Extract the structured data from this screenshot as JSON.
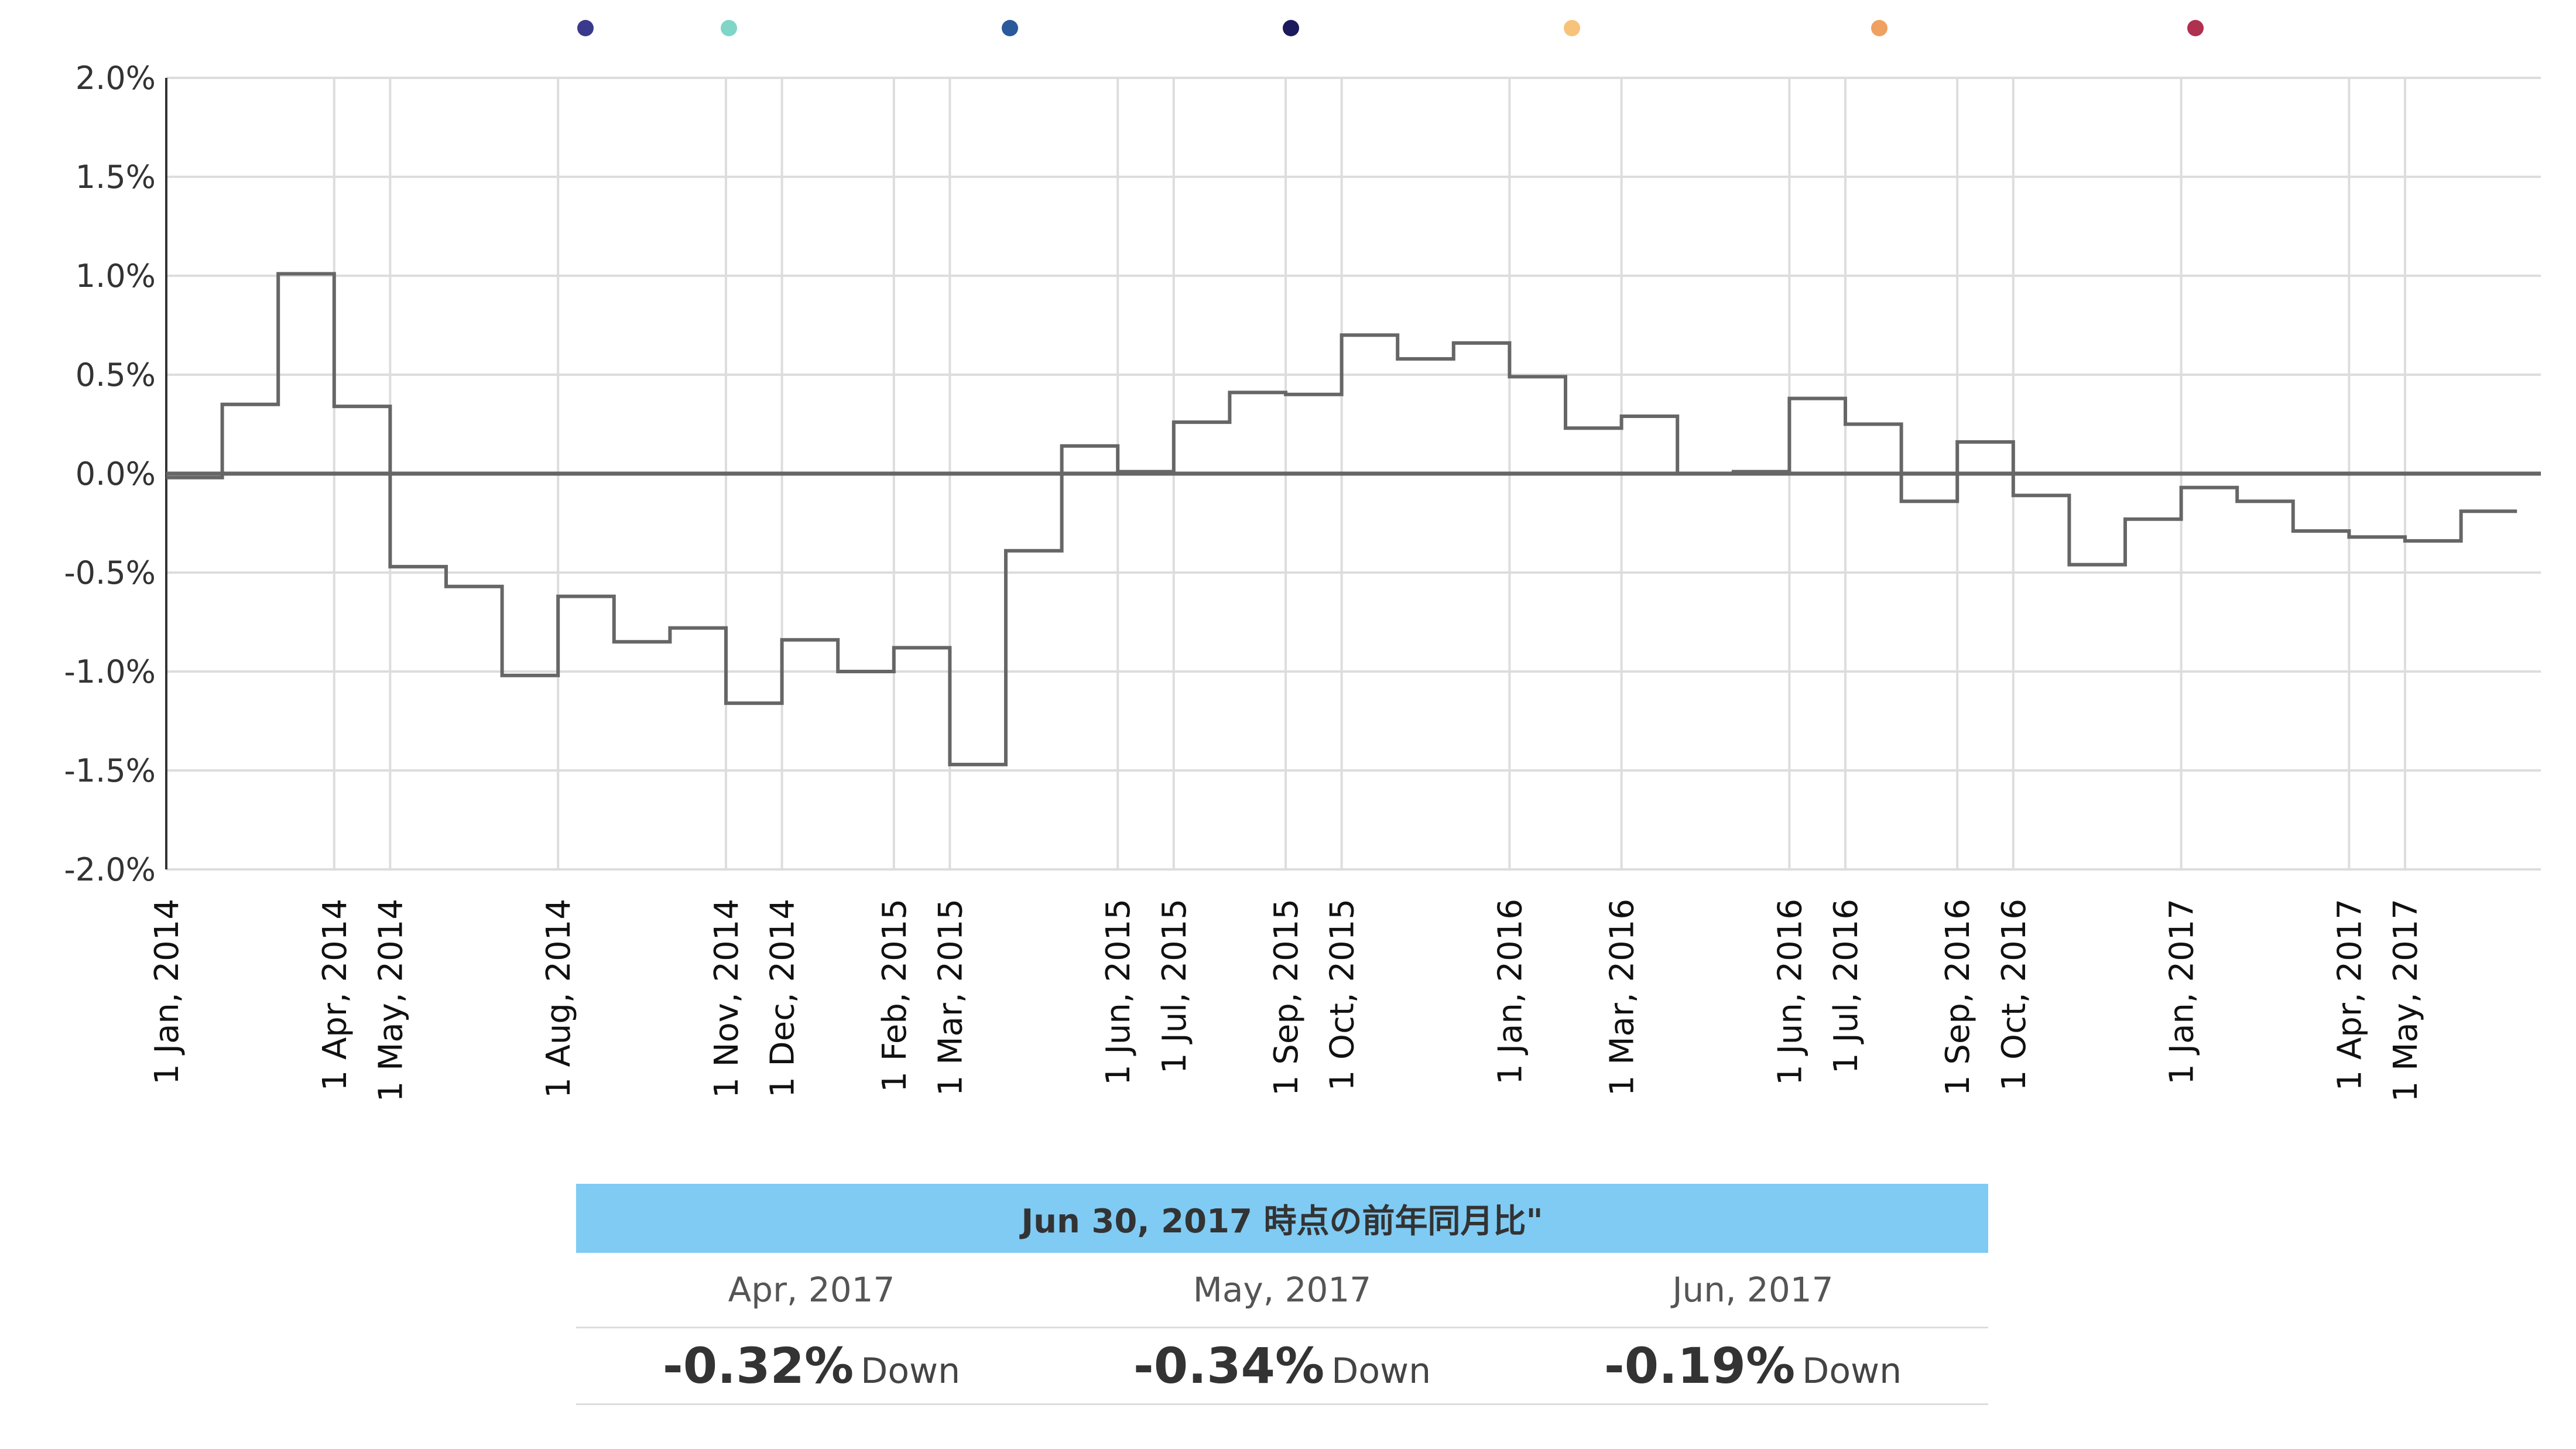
{
  "chart_data": {
    "type": "line",
    "step": true,
    "title": "",
    "xlabel": "",
    "ylabel": "",
    "ylim": [
      -2.0,
      2.0
    ],
    "xlim": [
      "2014-01",
      "2017-07"
    ],
    "yticks": [
      "2.0%",
      "1.5%",
      "1.0%",
      "0.5%",
      "0.0%",
      "-0.5%",
      "-1.0%",
      "-1.5%",
      "-2.0%"
    ],
    "ytick_values": [
      2.0,
      1.5,
      1.0,
      0.5,
      0.0,
      -0.5,
      -1.0,
      -1.5,
      -2.0
    ],
    "xticks": [
      {
        "label": "1 Jan, 2014",
        "month": 0
      },
      {
        "label": "1 Apr, 2014",
        "month": 3
      },
      {
        "label": "1 May, 2014",
        "month": 4
      },
      {
        "label": "1 Aug, 2014",
        "month": 7
      },
      {
        "label": "1 Nov, 2014",
        "month": 10
      },
      {
        "label": "1 Dec, 2014",
        "month": 11
      },
      {
        "label": "1 Feb, 2015",
        "month": 13
      },
      {
        "label": "1 Mar, 2015",
        "month": 14
      },
      {
        "label": "1 Jun, 2015",
        "month": 17
      },
      {
        "label": "1 Jul, 2015",
        "month": 18
      },
      {
        "label": "1 Sep, 2015",
        "month": 20
      },
      {
        "label": "1 Oct, 2015",
        "month": 21
      },
      {
        "label": "1 Jan, 2016",
        "month": 24
      },
      {
        "label": "1 Mar, 2016",
        "month": 26
      },
      {
        "label": "1 Jun, 2016",
        "month": 29
      },
      {
        "label": "1 Jul, 2016",
        "month": 30
      },
      {
        "label": "1 Sep, 2016",
        "month": 32
      },
      {
        "label": "1 Oct, 2016",
        "month": 33
      },
      {
        "label": "1 Jan, 2017",
        "month": 36
      },
      {
        "label": "1 Apr, 2017",
        "month": 39
      },
      {
        "label": "1 May, 2017",
        "month": 40
      }
    ],
    "series": [
      {
        "name": "前年同月比",
        "color": "#666666",
        "months": [
          "2014-01",
          "2014-02",
          "2014-03",
          "2014-04",
          "2014-05",
          "2014-06",
          "2014-07",
          "2014-08",
          "2014-09",
          "2014-10",
          "2014-11",
          "2014-12",
          "2015-01",
          "2015-02",
          "2015-03",
          "2015-04",
          "2015-05",
          "2015-06",
          "2015-07",
          "2015-08",
          "2015-09",
          "2015-10",
          "2015-11",
          "2015-12",
          "2016-01",
          "2016-02",
          "2016-03",
          "2016-04",
          "2016-05",
          "2016-06",
          "2016-07",
          "2016-08",
          "2016-09",
          "2016-10",
          "2016-11",
          "2016-12",
          "2017-01",
          "2017-02",
          "2017-03",
          "2017-04",
          "2017-05",
          "2017-06"
        ],
        "values": [
          -0.02,
          0.35,
          1.01,
          0.34,
          -0.47,
          -0.57,
          -1.02,
          -0.62,
          -0.85,
          -0.78,
          -1.16,
          -0.84,
          -1.0,
          -0.88,
          -1.47,
          -0.39,
          0.14,
          0.01,
          0.26,
          0.41,
          0.4,
          0.7,
          0.58,
          0.66,
          0.49,
          0.23,
          0.29,
          0.0,
          0.01,
          0.38,
          0.25,
          -0.14,
          0.16,
          -0.11,
          -0.46,
          -0.23,
          -0.07,
          -0.14,
          -0.29,
          -0.32,
          -0.34,
          -0.19
        ]
      }
    ],
    "zero_line": true,
    "legend_colors": [
      "#3a3a8c",
      "#7fd6c8",
      "#2a5a9c",
      "#1a1a5c",
      "#f7c37a",
      "#f0a060",
      "#b03050"
    ]
  },
  "summary": {
    "header": "Jun 30, 2017 時点の前年同月比\"",
    "columns": [
      {
        "month": "Apr, 2017",
        "value": "-0.32%",
        "direction": "Down"
      },
      {
        "month": "May, 2017",
        "value": "-0.34%",
        "direction": "Down"
      },
      {
        "month": "Jun, 2017",
        "value": "-0.19%",
        "direction": "Down"
      }
    ]
  }
}
